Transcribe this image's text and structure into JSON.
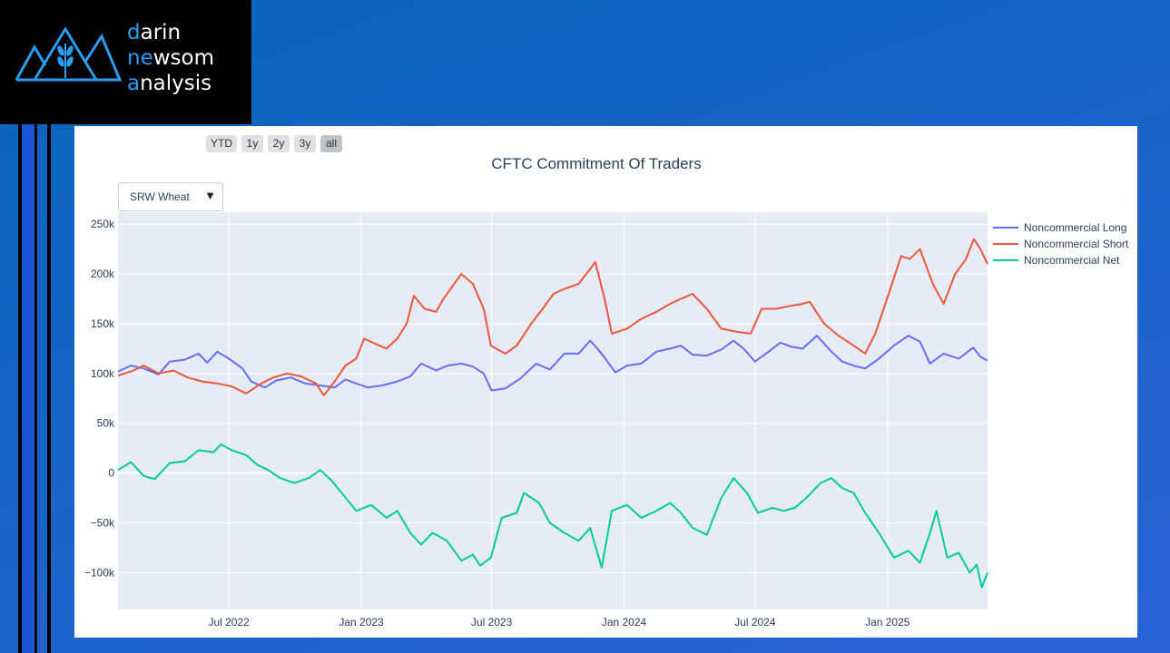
{
  "logo": {
    "line1_accent": "d",
    "line1_rest": "arin",
    "line2_accent": "ne",
    "line2_mid": "w",
    "line2_rest": "som",
    "line3_accent": "a",
    "line3_rest": "nalysis",
    "icon": "mountain-wheat-logo-icon"
  },
  "range_buttons": [
    "YTD",
    "1y",
    "2y",
    "3y",
    "all"
  ],
  "dropdown": {
    "selected": "SRW Wheat",
    "icon": "triangle-down-icon"
  },
  "colors": {
    "long": "#636efa",
    "short": "#ef553b",
    "net": "#00cc96",
    "plot_bg": "#e5ecf6",
    "accent": "#2a9df4"
  },
  "chart_data": {
    "type": "line",
    "title": "CFTC Commitment Of Traders",
    "xlabel": "",
    "ylabel": "",
    "x_range": [
      "2022-01-28",
      "2025-05-20"
    ],
    "ylim": [
      -137000,
      262000
    ],
    "y_ticks": [
      250000,
      200000,
      150000,
      100000,
      50000,
      0,
      -50000,
      -100000
    ],
    "y_tick_labels": [
      "250k",
      "200k",
      "150k",
      "100k",
      "50k",
      "0",
      "−50k",
      "−100k"
    ],
    "x_ticks": [
      {
        "date": "2022-07-01",
        "label": "Jul 2022"
      },
      {
        "date": "2023-01-01",
        "label": "Jan 2023"
      },
      {
        "date": "2023-07-01",
        "label": "Jul 2023"
      },
      {
        "date": "2024-01-01",
        "label": "Jan 2024"
      },
      {
        "date": "2024-07-01",
        "label": "Jul 2024"
      },
      {
        "date": "2025-01-01",
        "label": "Jan 2025"
      }
    ],
    "grid": true,
    "legend_position": "right",
    "series": [
      {
        "name": "Noncommercial Long",
        "color": "#636efa",
        "points": [
          [
            "2022-01-28",
            102000
          ],
          [
            "2022-02-15",
            108000
          ],
          [
            "2022-03-05",
            105000
          ],
          [
            "2022-03-25",
            99000
          ],
          [
            "2022-04-10",
            112000
          ],
          [
            "2022-05-01",
            114000
          ],
          [
            "2022-05-20",
            120000
          ],
          [
            "2022-06-01",
            111000
          ],
          [
            "2022-06-15",
            122000
          ],
          [
            "2022-07-01",
            115000
          ],
          [
            "2022-07-20",
            105000
          ],
          [
            "2022-08-01",
            92000
          ],
          [
            "2022-08-20",
            86000
          ],
          [
            "2022-09-05",
            93000
          ],
          [
            "2022-09-25",
            96000
          ],
          [
            "2022-10-15",
            90000
          ],
          [
            "2022-11-05",
            88000
          ],
          [
            "2022-11-25",
            86000
          ],
          [
            "2022-12-10",
            94000
          ],
          [
            "2022-12-25",
            90000
          ],
          [
            "2023-01-10",
            86000
          ],
          [
            "2023-01-30",
            88000
          ],
          [
            "2023-02-20",
            92000
          ],
          [
            "2023-03-10",
            97000
          ],
          [
            "2023-03-25",
            110000
          ],
          [
            "2023-04-15",
            103000
          ],
          [
            "2023-05-01",
            108000
          ],
          [
            "2023-05-20",
            110000
          ],
          [
            "2023-06-05",
            107000
          ],
          [
            "2023-06-20",
            100000
          ],
          [
            "2023-07-01",
            83000
          ],
          [
            "2023-07-20",
            85000
          ],
          [
            "2023-08-10",
            95000
          ],
          [
            "2023-09-01",
            110000
          ],
          [
            "2023-09-20",
            104000
          ],
          [
            "2023-10-10",
            120000
          ],
          [
            "2023-10-30",
            120000
          ],
          [
            "2023-11-15",
            133000
          ],
          [
            "2023-11-25",
            125000
          ],
          [
            "2023-12-05",
            116000
          ],
          [
            "2023-12-20",
            101000
          ],
          [
            "2024-01-05",
            108000
          ],
          [
            "2024-01-25",
            110000
          ],
          [
            "2024-02-15",
            122000
          ],
          [
            "2024-03-05",
            125000
          ],
          [
            "2024-03-20",
            128000
          ],
          [
            "2024-04-05",
            119000
          ],
          [
            "2024-04-25",
            118000
          ],
          [
            "2024-05-15",
            124000
          ],
          [
            "2024-06-01",
            133000
          ],
          [
            "2024-06-15",
            125000
          ],
          [
            "2024-07-01",
            112000
          ],
          [
            "2024-07-20",
            122000
          ],
          [
            "2024-08-05",
            131000
          ],
          [
            "2024-08-20",
            127000
          ],
          [
            "2024-09-05",
            125000
          ],
          [
            "2024-09-25",
            138000
          ],
          [
            "2024-10-15",
            122000
          ],
          [
            "2024-10-30",
            112000
          ],
          [
            "2024-11-15",
            108000
          ],
          [
            "2024-12-01",
            105000
          ],
          [
            "2024-12-20",
            115000
          ],
          [
            "2025-01-10",
            128000
          ],
          [
            "2025-01-30",
            138000
          ],
          [
            "2025-02-15",
            132000
          ],
          [
            "2025-03-01",
            110000
          ],
          [
            "2025-03-20",
            120000
          ],
          [
            "2025-04-10",
            115000
          ],
          [
            "2025-04-30",
            126000
          ],
          [
            "2025-05-10",
            117000
          ],
          [
            "2025-05-20",
            113000
          ]
        ]
      },
      {
        "name": "Noncommercial Short",
        "color": "#ef553b",
        "points": [
          [
            "2022-01-28",
            98000
          ],
          [
            "2022-02-15",
            102000
          ],
          [
            "2022-03-05",
            108000
          ],
          [
            "2022-03-25",
            100000
          ],
          [
            "2022-04-15",
            103000
          ],
          [
            "2022-05-05",
            96000
          ],
          [
            "2022-05-25",
            92000
          ],
          [
            "2022-06-15",
            90000
          ],
          [
            "2022-07-05",
            87000
          ],
          [
            "2022-07-25",
            80000
          ],
          [
            "2022-08-15",
            90000
          ],
          [
            "2022-09-01",
            96000
          ],
          [
            "2022-09-20",
            100000
          ],
          [
            "2022-10-10",
            97000
          ],
          [
            "2022-10-30",
            90000
          ],
          [
            "2022-11-10",
            78000
          ],
          [
            "2022-11-25",
            92000
          ],
          [
            "2022-12-10",
            108000
          ],
          [
            "2022-12-25",
            115000
          ],
          [
            "2023-01-05",
            135000
          ],
          [
            "2023-01-20",
            130000
          ],
          [
            "2023-02-05",
            125000
          ],
          [
            "2023-02-20",
            135000
          ],
          [
            "2023-03-05",
            150000
          ],
          [
            "2023-03-15",
            178000
          ],
          [
            "2023-03-30",
            165000
          ],
          [
            "2023-04-15",
            162000
          ],
          [
            "2023-04-25",
            175000
          ],
          [
            "2023-05-10",
            190000
          ],
          [
            "2023-05-20",
            200000
          ],
          [
            "2023-06-05",
            190000
          ],
          [
            "2023-06-20",
            165000
          ],
          [
            "2023-06-30",
            128000
          ],
          [
            "2023-07-20",
            120000
          ],
          [
            "2023-08-05",
            128000
          ],
          [
            "2023-08-25",
            150000
          ],
          [
            "2023-09-10",
            165000
          ],
          [
            "2023-09-25",
            180000
          ],
          [
            "2023-10-10",
            185000
          ],
          [
            "2023-10-30",
            190000
          ],
          [
            "2023-11-15",
            205000
          ],
          [
            "2023-11-22",
            212000
          ],
          [
            "2023-12-05",
            175000
          ],
          [
            "2023-12-15",
            140000
          ],
          [
            "2024-01-05",
            145000
          ],
          [
            "2024-01-25",
            155000
          ],
          [
            "2024-02-15",
            162000
          ],
          [
            "2024-03-05",
            170000
          ],
          [
            "2024-03-20",
            175000
          ],
          [
            "2024-04-05",
            180000
          ],
          [
            "2024-04-25",
            165000
          ],
          [
            "2024-05-15",
            145000
          ],
          [
            "2024-06-05",
            142000
          ],
          [
            "2024-06-25",
            140000
          ],
          [
            "2024-07-10",
            165000
          ],
          [
            "2024-07-30",
            165000
          ],
          [
            "2024-08-20",
            168000
          ],
          [
            "2024-09-05",
            170000
          ],
          [
            "2024-09-15",
            172000
          ],
          [
            "2024-10-05",
            150000
          ],
          [
            "2024-10-25",
            138000
          ],
          [
            "2024-11-15",
            128000
          ],
          [
            "2024-12-01",
            120000
          ],
          [
            "2024-12-15",
            140000
          ],
          [
            "2025-01-05",
            185000
          ],
          [
            "2025-01-20",
            218000
          ],
          [
            "2025-02-01",
            215000
          ],
          [
            "2025-02-15",
            225000
          ],
          [
            "2025-03-05",
            190000
          ],
          [
            "2025-03-20",
            170000
          ],
          [
            "2025-04-05",
            200000
          ],
          [
            "2025-04-20",
            215000
          ],
          [
            "2025-05-01",
            235000
          ],
          [
            "2025-05-10",
            225000
          ],
          [
            "2025-05-20",
            210000
          ]
        ]
      },
      {
        "name": "Noncommercial Net",
        "color": "#00cc96",
        "points": [
          [
            "2022-01-28",
            3000
          ],
          [
            "2022-02-15",
            11000
          ],
          [
            "2022-03-05",
            -3000
          ],
          [
            "2022-03-20",
            -6000
          ],
          [
            "2022-04-10",
            10000
          ],
          [
            "2022-05-01",
            12000
          ],
          [
            "2022-05-20",
            23000
          ],
          [
            "2022-06-10",
            21000
          ],
          [
            "2022-06-20",
            29000
          ],
          [
            "2022-07-05",
            23000
          ],
          [
            "2022-07-25",
            18000
          ],
          [
            "2022-08-10",
            8000
          ],
          [
            "2022-08-25",
            3000
          ],
          [
            "2022-09-10",
            -5000
          ],
          [
            "2022-09-30",
            -10000
          ],
          [
            "2022-10-20",
            -5000
          ],
          [
            "2022-11-05",
            3000
          ],
          [
            "2022-11-20",
            -7000
          ],
          [
            "2022-12-05",
            -20000
          ],
          [
            "2022-12-25",
            -38000
          ],
          [
            "2023-01-15",
            -32000
          ],
          [
            "2023-02-05",
            -45000
          ],
          [
            "2023-02-20",
            -38000
          ],
          [
            "2023-03-10",
            -60000
          ],
          [
            "2023-03-25",
            -72000
          ],
          [
            "2023-04-10",
            -60000
          ],
          [
            "2023-04-30",
            -68000
          ],
          [
            "2023-05-20",
            -88000
          ],
          [
            "2023-06-05",
            -82000
          ],
          [
            "2023-06-15",
            -93000
          ],
          [
            "2023-06-30",
            -85000
          ],
          [
            "2023-07-15",
            -45000
          ],
          [
            "2023-08-05",
            -40000
          ],
          [
            "2023-08-15",
            -20000
          ],
          [
            "2023-09-05",
            -30000
          ],
          [
            "2023-09-20",
            -50000
          ],
          [
            "2023-10-10",
            -60000
          ],
          [
            "2023-10-30",
            -68000
          ],
          [
            "2023-11-15",
            -55000
          ],
          [
            "2023-12-01",
            -95000
          ],
          [
            "2023-12-15",
            -38000
          ],
          [
            "2024-01-05",
            -32000
          ],
          [
            "2024-01-25",
            -45000
          ],
          [
            "2024-02-15",
            -38000
          ],
          [
            "2024-03-05",
            -30000
          ],
          [
            "2024-03-20",
            -40000
          ],
          [
            "2024-04-05",
            -55000
          ],
          [
            "2024-04-25",
            -62000
          ],
          [
            "2024-05-15",
            -25000
          ],
          [
            "2024-06-01",
            -5000
          ],
          [
            "2024-06-20",
            -20000
          ],
          [
            "2024-07-05",
            -40000
          ],
          [
            "2024-07-25",
            -35000
          ],
          [
            "2024-08-10",
            -38000
          ],
          [
            "2024-08-25",
            -35000
          ],
          [
            "2024-09-10",
            -25000
          ],
          [
            "2024-09-30",
            -10000
          ],
          [
            "2024-10-15",
            -5000
          ],
          [
            "2024-10-30",
            -15000
          ],
          [
            "2024-11-15",
            -20000
          ],
          [
            "2024-12-01",
            -40000
          ],
          [
            "2024-12-20",
            -60000
          ],
          [
            "2025-01-10",
            -85000
          ],
          [
            "2025-01-30",
            -78000
          ],
          [
            "2025-02-15",
            -90000
          ],
          [
            "2025-03-01",
            -60000
          ],
          [
            "2025-03-10",
            -38000
          ],
          [
            "2025-03-25",
            -85000
          ],
          [
            "2025-04-10",
            -80000
          ],
          [
            "2025-04-25",
            -100000
          ],
          [
            "2025-05-05",
            -92000
          ],
          [
            "2025-05-12",
            -115000
          ],
          [
            "2025-05-20",
            -100000
          ]
        ]
      }
    ]
  }
}
